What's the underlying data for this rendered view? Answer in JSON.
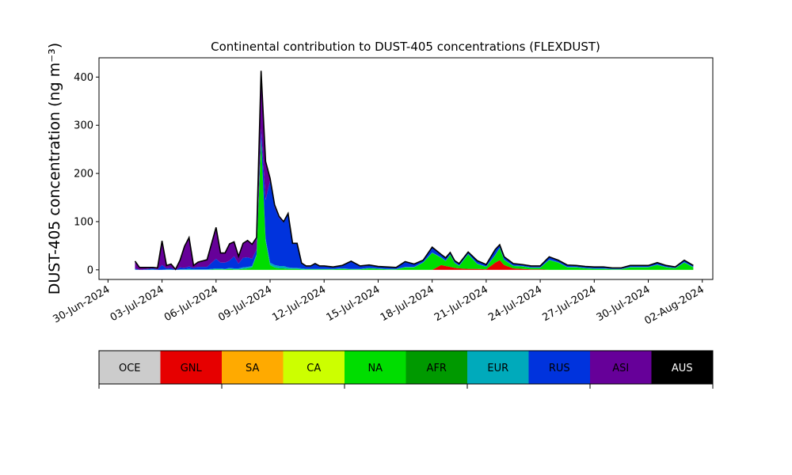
{
  "chart_data": {
    "type": "area",
    "stacked": true,
    "title": "Continental contribution to DUST-405 concentrations (FLEXDUST)",
    "ylabel": "DUST-405 concentration (ng m⁻³)",
    "xlabel": "",
    "ylim": [
      -20,
      440
    ],
    "xlim": [
      "2024-06-29T12:00",
      "2024-08-02T14:00"
    ],
    "y_ticks": [
      0,
      100,
      200,
      300,
      400
    ],
    "x_ticks": [
      "2024-06-30",
      "2024-07-03",
      "2024-07-06",
      "2024-07-09",
      "2024-07-12",
      "2024-07-15",
      "2024-07-18",
      "2024-07-21",
      "2024-07-24",
      "2024-07-27",
      "2024-07-30",
      "2024-08-02"
    ],
    "x_tick_labels": [
      "30-Jun-2024",
      "03-Jul-2024",
      "06-Jul-2024",
      "09-Jul-2024",
      "12-Jul-2024",
      "15-Jul-2024",
      "18-Jul-2024",
      "21-Jul-2024",
      "24-Jul-2024",
      "27-Jul-2024",
      "30-Jul-2024",
      "02-Aug-2024"
    ],
    "grid": false,
    "legend": "colorbar below",
    "total_line_color": "#000000",
    "x": [
      "2024-07-01T12:00",
      "2024-07-01T18:00",
      "2024-07-02T00:00",
      "2024-07-02T12:00",
      "2024-07-02T18:00",
      "2024-07-03T00:00",
      "2024-07-03T06:00",
      "2024-07-03T12:00",
      "2024-07-03T18:00",
      "2024-07-04T00:00",
      "2024-07-04T06:00",
      "2024-07-04T12:00",
      "2024-07-04T18:00",
      "2024-07-05T00:00",
      "2024-07-05T12:00",
      "2024-07-06T00:00",
      "2024-07-06T06:00",
      "2024-07-06T12:00",
      "2024-07-06T18:00",
      "2024-07-07T00:00",
      "2024-07-07T06:00",
      "2024-07-07T12:00",
      "2024-07-07T18:00",
      "2024-07-08T00:00",
      "2024-07-08T06:00",
      "2024-07-08T12:00",
      "2024-07-08T18:00",
      "2024-07-09T00:00",
      "2024-07-09T06:00",
      "2024-07-09T12:00",
      "2024-07-09T18:00",
      "2024-07-10T00:00",
      "2024-07-10T06:00",
      "2024-07-10T12:00",
      "2024-07-10T18:00",
      "2024-07-11T00:00",
      "2024-07-11T06:00",
      "2024-07-11T12:00",
      "2024-07-11T18:00",
      "2024-07-12T00:00",
      "2024-07-12T12:00",
      "2024-07-13T00:00",
      "2024-07-13T12:00",
      "2024-07-14T00:00",
      "2024-07-14T12:00",
      "2024-07-15T00:00",
      "2024-07-15T12:00",
      "2024-07-16T00:00",
      "2024-07-16T12:00",
      "2024-07-17T00:00",
      "2024-07-17T12:00",
      "2024-07-18T00:00",
      "2024-07-18T12:00",
      "2024-07-18T18:00",
      "2024-07-19T00:00",
      "2024-07-19T06:00",
      "2024-07-19T12:00",
      "2024-07-20T00:00",
      "2024-07-20T12:00",
      "2024-07-21T00:00",
      "2024-07-21T12:00",
      "2024-07-21T18:00",
      "2024-07-22T00:00",
      "2024-07-22T12:00",
      "2024-07-23T00:00",
      "2024-07-23T12:00",
      "2024-07-24T00:00",
      "2024-07-24T12:00",
      "2024-07-25T00:00",
      "2024-07-25T12:00",
      "2024-07-26T00:00",
      "2024-07-26T12:00",
      "2024-07-27T00:00",
      "2024-07-27T12:00",
      "2024-07-28T00:00",
      "2024-07-28T12:00",
      "2024-07-29T00:00",
      "2024-07-29T12:00",
      "2024-07-30T00:00",
      "2024-07-30T12:00",
      "2024-07-31T00:00",
      "2024-07-31T12:00",
      "2024-08-01T00:00",
      "2024-08-01T12:00"
    ],
    "series": [
      {
        "name": "OCE",
        "color": "#cccccc",
        "values": [
          0,
          0,
          0,
          0,
          0,
          0,
          0,
          0,
          0,
          0,
          0,
          0,
          0,
          0,
          0,
          0,
          0,
          0,
          0,
          0,
          0,
          0,
          0,
          0,
          0,
          0,
          0,
          0,
          0,
          0,
          0,
          0,
          0,
          0,
          0,
          0,
          0,
          0,
          0,
          0,
          0,
          0,
          0,
          0,
          0,
          0,
          0,
          0,
          0,
          0,
          0,
          0,
          0,
          0,
          0,
          0,
          0,
          0,
          0,
          0,
          0,
          0,
          0,
          0,
          0,
          0,
          0,
          0,
          0,
          0,
          0,
          0,
          0,
          0,
          0,
          0,
          0,
          0,
          0,
          0,
          0,
          0,
          0,
          0
        ]
      },
      {
        "name": "GNL",
        "color": "#e60000",
        "values": [
          0,
          0,
          0,
          0,
          0,
          0,
          0,
          0,
          0,
          0,
          0,
          0,
          0,
          0,
          0,
          0,
          0,
          0,
          0,
          0,
          0,
          0,
          0,
          0,
          0,
          0,
          0,
          0,
          0,
          0,
          0,
          0,
          0,
          0,
          0,
          0,
          0,
          0,
          0,
          0,
          0,
          0,
          0,
          0,
          0,
          0,
          0,
          0,
          0,
          0,
          0,
          0,
          10,
          8,
          6,
          4,
          3,
          2,
          2,
          1,
          15,
          20,
          10,
          3,
          2,
          1,
          1,
          0,
          0,
          0,
          0,
          0,
          0,
          0,
          0,
          0,
          0,
          0,
          0,
          0,
          0,
          0,
          0,
          0
        ]
      },
      {
        "name": "SA",
        "color": "#ffaa00",
        "values": [
          0,
          0,
          0,
          0,
          0,
          0,
          0,
          0,
          0,
          0,
          0,
          0,
          0,
          0,
          0,
          0,
          0,
          0,
          0,
          0,
          0,
          0,
          0,
          0,
          0,
          0,
          0,
          0,
          0,
          0,
          0,
          0,
          0,
          0,
          0,
          0,
          0,
          0,
          0,
          0,
          0,
          0,
          0,
          0,
          0,
          0,
          0,
          0,
          0,
          0,
          0,
          0,
          0,
          0,
          0,
          0,
          0,
          0,
          0,
          0,
          0,
          0,
          0,
          0,
          0,
          0,
          0,
          0,
          0,
          0,
          0,
          0,
          0,
          0,
          0,
          0,
          0,
          0,
          0,
          0,
          0,
          0,
          0,
          0
        ]
      },
      {
        "name": "CA",
        "color": "#ccff00",
        "values": [
          0,
          0,
          0,
          0,
          0,
          0,
          0,
          0,
          0,
          0,
          0,
          0,
          0,
          0,
          0,
          0,
          0,
          0,
          0,
          0,
          0,
          0,
          0,
          0,
          0,
          0,
          0,
          0,
          0,
          0,
          0,
          0,
          0,
          0,
          0,
          0,
          0,
          0,
          0,
          0,
          0,
          0,
          0,
          0,
          0,
          0,
          0,
          0,
          0,
          0,
          0,
          0,
          0,
          0,
          0,
          0,
          0,
          0,
          0,
          0,
          0,
          0,
          0,
          0,
          0,
          0,
          0,
          0,
          0,
          0,
          0,
          0,
          0,
          0,
          0,
          0,
          0,
          0,
          0,
          0,
          0,
          0,
          0,
          0
        ]
      },
      {
        "name": "NA",
        "color": "#00dd00",
        "values": [
          0,
          0,
          0,
          0,
          0,
          0,
          0,
          0,
          0,
          0,
          0,
          0,
          0,
          0,
          0,
          1,
          1,
          1,
          2,
          1,
          1,
          2,
          3,
          5,
          30,
          270,
          60,
          10,
          5,
          3,
          3,
          2,
          2,
          2,
          1,
          1,
          1,
          1,
          1,
          1,
          1,
          2,
          1,
          1,
          3,
          2,
          1,
          1,
          5,
          5,
          15,
          35,
          15,
          10,
          25,
          10,
          5,
          30,
          10,
          5,
          15,
          25,
          10,
          5,
          5,
          3,
          3,
          20,
          15,
          5,
          5,
          3,
          2,
          2,
          1,
          1,
          5,
          5,
          5,
          10,
          5,
          3,
          15,
          5
        ]
      },
      {
        "name": "AFR",
        "color": "#009900",
        "values": [
          0,
          0,
          0,
          0,
          0,
          0,
          0,
          0,
          0,
          0,
          0,
          0,
          0,
          0,
          0,
          0,
          0,
          0,
          0,
          0,
          0,
          0,
          0,
          0,
          0,
          0,
          0,
          0,
          0,
          0,
          0,
          0,
          0,
          0,
          0,
          0,
          0,
          0,
          0,
          0,
          0,
          0,
          0,
          0,
          0,
          0,
          0,
          0,
          0,
          0,
          0,
          0,
          0,
          0,
          0,
          0,
          0,
          0,
          0,
          0,
          0,
          0,
          0,
          0,
          0,
          0,
          0,
          0,
          0,
          0,
          0,
          0,
          0,
          0,
          0,
          0,
          0,
          0,
          0,
          0,
          0,
          0,
          0,
          0
        ]
      },
      {
        "name": "EUR",
        "color": "#00aabb",
        "values": [
          1,
          0,
          0,
          1,
          0,
          0,
          1,
          1,
          0,
          1,
          1,
          2,
          1,
          1,
          1,
          2,
          2,
          1,
          2,
          2,
          2,
          3,
          3,
          3,
          2,
          3,
          5,
          5,
          5,
          5,
          5,
          3,
          2,
          2,
          2,
          1,
          1,
          1,
          1,
          1,
          1,
          1,
          1,
          1,
          1,
          1,
          1,
          1,
          1,
          1,
          1,
          1,
          1,
          1,
          1,
          1,
          1,
          1,
          1,
          1,
          1,
          1,
          1,
          1,
          1,
          1,
          1,
          1,
          1,
          1,
          1,
          1,
          1,
          1,
          1,
          1,
          1,
          1,
          1,
          1,
          1,
          1,
          1,
          1
        ]
      },
      {
        "name": "RUS",
        "color": "#0033dd",
        "values": [
          2,
          0,
          1,
          2,
          1,
          10,
          2,
          3,
          0,
          4,
          3,
          5,
          3,
          5,
          5,
          20,
          12,
          13,
          15,
          25,
          10,
          20,
          20,
          15,
          10,
          20,
          80,
          170,
          120,
          100,
          90,
          110,
          50,
          50,
          10,
          5,
          5,
          10,
          5,
          5,
          3,
          5,
          15,
          5,
          5,
          3,
          3,
          2,
          10,
          5,
          3,
          10,
          5,
          5,
          3,
          3,
          3,
          3,
          5,
          3,
          10,
          5,
          5,
          3,
          2,
          2,
          2,
          5,
          3,
          3,
          2,
          2,
          2,
          2,
          1,
          1,
          2,
          2,
          2,
          3,
          2,
          1,
          3,
          2
        ]
      },
      {
        "name": "ASI",
        "color": "#660099",
        "values": [
          15,
          5,
          4,
          2,
          3,
          50,
          6,
          8,
          1,
          15,
          45,
          60,
          5,
          10,
          15,
          65,
          20,
          20,
          35,
          30,
          15,
          30,
          35,
          30,
          25,
          120,
          80,
          5,
          5,
          3,
          2,
          2,
          1,
          1,
          1,
          1,
          1,
          1,
          1,
          1,
          1,
          1,
          1,
          1,
          1,
          1,
          1,
          1,
          1,
          1,
          1,
          1,
          1,
          1,
          1,
          1,
          1,
          1,
          1,
          1,
          1,
          1,
          1,
          1,
          1,
          1,
          1,
          1,
          1,
          1,
          1,
          1,
          1,
          1,
          1,
          1,
          1,
          1,
          1,
          1,
          1,
          1,
          1,
          1
        ]
      },
      {
        "name": "AUS",
        "color": "#000000",
        "values": [
          0,
          0,
          0,
          0,
          0,
          0,
          0,
          0,
          0,
          0,
          0,
          0,
          0,
          0,
          0,
          0,
          0,
          0,
          0,
          0,
          0,
          0,
          0,
          0,
          0,
          0,
          0,
          0,
          0,
          0,
          0,
          0,
          0,
          0,
          0,
          0,
          0,
          0,
          0,
          0,
          0,
          0,
          0,
          0,
          0,
          0,
          0,
          0,
          0,
          0,
          0,
          0,
          0,
          0,
          0,
          0,
          0,
          0,
          0,
          0,
          0,
          0,
          0,
          0,
          0,
          0,
          0,
          0,
          0,
          0,
          0,
          0,
          0,
          0,
          0,
          0,
          0,
          0,
          0,
          0,
          0,
          0,
          0,
          0
        ]
      }
    ],
    "colorbar": [
      {
        "label": "OCE",
        "color": "#cccccc",
        "text_color": "#000000"
      },
      {
        "label": "GNL",
        "color": "#e60000",
        "text_color": "#000000"
      },
      {
        "label": "SA",
        "color": "#ffaa00",
        "text_color": "#000000"
      },
      {
        "label": "CA",
        "color": "#ccff00",
        "text_color": "#000000"
      },
      {
        "label": "NA",
        "color": "#00dd00",
        "text_color": "#000000"
      },
      {
        "label": "AFR",
        "color": "#009900",
        "text_color": "#000000"
      },
      {
        "label": "EUR",
        "color": "#00aabb",
        "text_color": "#000000"
      },
      {
        "label": "RUS",
        "color": "#0033dd",
        "text_color": "#000000"
      },
      {
        "label": "ASI",
        "color": "#660099",
        "text_color": "#000000"
      },
      {
        "label": "AUS",
        "color": "#000000",
        "text_color": "#ffffff"
      }
    ]
  }
}
